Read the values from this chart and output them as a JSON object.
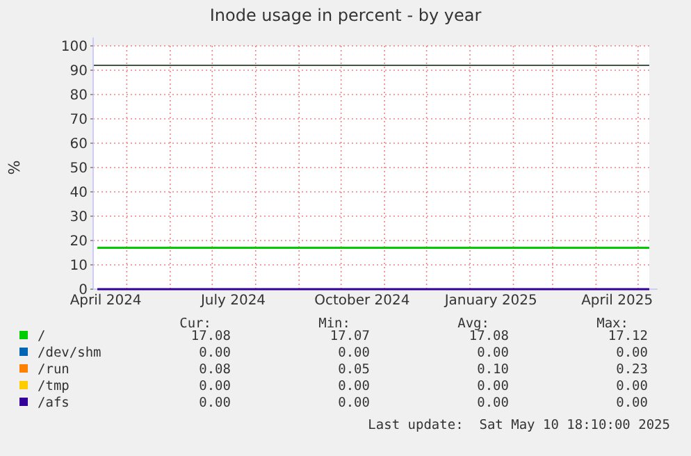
{
  "chart_data": {
    "type": "line",
    "title": "Inode usage in percent - by year",
    "ylabel": "%",
    "xlim": [
      "2024-04-07",
      "2025-05-09"
    ],
    "ylim": [
      0,
      100
    ],
    "yticks": [
      0,
      10,
      20,
      30,
      40,
      50,
      60,
      70,
      80,
      90,
      100
    ],
    "xticks": [
      {
        "value": "2024-04-16",
        "label": "April 2024"
      },
      {
        "value": "2024-07-16",
        "label": "July 2024"
      },
      {
        "value": "2024-10-16",
        "label": "October 2024"
      },
      {
        "value": "2025-01-16",
        "label": "January 2025"
      },
      {
        "value": "2025-04-16",
        "label": "April 2025"
      },
      {
        "value": "2024-05-01",
        "label": null
      },
      {
        "value": "2024-06-01",
        "label": null
      },
      {
        "value": "2024-07-01",
        "label": null
      },
      {
        "value": "2024-08-01",
        "label": null
      },
      {
        "value": "2024-09-01",
        "label": null
      },
      {
        "value": "2024-10-01",
        "label": null
      },
      {
        "value": "2024-11-01",
        "label": null
      },
      {
        "value": "2024-12-01",
        "label": null
      },
      {
        "value": "2025-01-01",
        "label": null
      },
      {
        "value": "2025-02-01",
        "label": null
      },
      {
        "value": "2025-03-01",
        "label": null
      },
      {
        "value": "2025-04-01",
        "label": null
      },
      {
        "value": "2025-05-01",
        "label": null
      }
    ],
    "grid": true,
    "legend": "bottom",
    "series": [
      {
        "name": "/",
        "color": "#00cc00",
        "x": [
          "2024-04-10",
          "2025-05-09"
        ],
        "values": [
          17,
          17
        ]
      },
      {
        "name": "/dev/shm",
        "color": "#0066b3"
      },
      {
        "name": "/run",
        "color": "#ff8000"
      },
      {
        "name": "/tmp",
        "color": "#ffcc00"
      },
      {
        "name": "/afs",
        "color": "#330099",
        "x": [
          "2024-04-10",
          "2025-05-09"
        ],
        "values": [
          0,
          0
        ]
      }
    ],
    "ref_lines": [
      {
        "axis": "y",
        "value": 92,
        "label": null,
        "color": "#445544"
      }
    ],
    "annotations": [
      "Cur:",
      "Min:",
      "Avg:",
      "Max:",
      "17.08",
      "17.07",
      "17.08",
      "17.12",
      "0.00",
      "0.00",
      "0.00",
      "0.00",
      "0.08",
      "0.05",
      "0.10",
      "0.23",
      "0.00",
      "0.00",
      "0.00",
      "0.00",
      "0.00",
      "0.00",
      "0.00",
      "0.00",
      "Last update:  Sat May 10 18:10:00 2025"
    ]
  }
}
